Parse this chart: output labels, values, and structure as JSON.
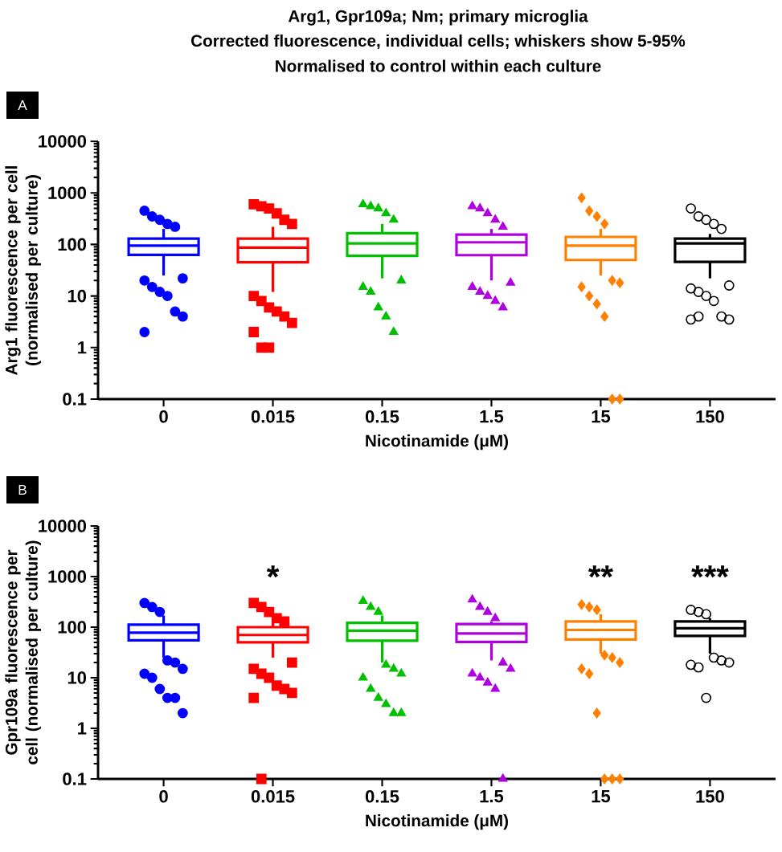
{
  "chart_data": [
    {
      "type": "box",
      "title": "Arg1, Gpr109a; Nm; primary microglia",
      "subtitle": "Corrected fluorescence, individual cells; whiskers show 5-95%",
      "annotations": [
        "Normalised to control within each culture",
        "A"
      ],
      "xlabel": "Nicotinamide (μM)",
      "ylabel": "Arg1 fluorescence per cell (normalised per culture)",
      "categories": [
        "0",
        "0.015",
        "0.15",
        "1.5",
        "15",
        "150"
      ],
      "colors": [
        "#0000ff",
        "#ff0000",
        "#00c000",
        "#b000e0",
        "#ff8000",
        "#000000"
      ],
      "log": true,
      "ylim": [
        0.1,
        10000
      ],
      "yticks": [
        0.1,
        1,
        10,
        100,
        1000,
        10000
      ],
      "boxes": [
        {
          "low": 25,
          "q1": 63,
          "median": 95,
          "q3": 130,
          "high": 200,
          "outliers": [
            450,
            350,
            300,
            250,
            220,
            22,
            20,
            15,
            12,
            10,
            5,
            4,
            2
          ]
        },
        {
          "low": 12,
          "q1": 45,
          "median": 87,
          "q3": 130,
          "high": 220,
          "outliers": [
            600,
            550,
            500,
            400,
            300,
            250,
            10,
            8,
            6,
            5,
            4,
            3,
            2,
            1,
            1
          ]
        },
        {
          "low": 22,
          "q1": 60,
          "median": 105,
          "q3": 165,
          "high": 250,
          "outliers": [
            600,
            550,
            500,
            400,
            300,
            20,
            15,
            12,
            6,
            4,
            2
          ]
        },
        {
          "low": 20,
          "q1": 62,
          "median": 110,
          "q3": 155,
          "high": 200,
          "outliers": [
            550,
            500,
            400,
            300,
            220,
            18,
            15,
            12,
            10,
            8,
            6
          ]
        },
        {
          "low": 25,
          "q1": 50,
          "median": 95,
          "q3": 140,
          "high": 200,
          "outliers": [
            800,
            450,
            350,
            250,
            20,
            18,
            15,
            10,
            7,
            4,
            0.1,
            0.1
          ]
        },
        {
          "low": 22,
          "q1": 46,
          "median": 105,
          "q3": 130,
          "high": 160,
          "outliers": [
            500,
            350,
            300,
            250,
            200,
            16,
            14,
            12,
            10,
            8,
            4,
            3.5,
            3.5,
            4
          ]
        }
      ]
    },
    {
      "type": "box",
      "annotations": [
        "B"
      ],
      "value_labels": [
        null,
        "*",
        null,
        null,
        "**",
        "***"
      ],
      "xlabel": "Nicotinamide (μM)",
      "ylabel": "Gpr109a fluorescence per cell (normalised per culture)",
      "categories": [
        "0",
        "0.015",
        "0.15",
        "1.5",
        "15",
        "150"
      ],
      "colors": [
        "#0000ff",
        "#ff0000",
        "#00c000",
        "#b000e0",
        "#ff8000",
        "#000000"
      ],
      "log": true,
      "ylim": [
        0.1,
        10000
      ],
      "yticks": [
        0.1,
        1,
        10,
        100,
        1000,
        10000
      ],
      "boxes": [
        {
          "low": 25,
          "q1": 55,
          "median": 78,
          "q3": 112,
          "high": 170,
          "outliers": [
            300,
            250,
            200,
            22,
            20,
            15,
            12,
            10,
            6,
            4,
            4,
            2
          ]
        },
        {
          "low": 25,
          "q1": 50,
          "median": 70,
          "q3": 100,
          "high": 120,
          "outliers": [
            300,
            250,
            200,
            150,
            130,
            20,
            15,
            12,
            10,
            7,
            6,
            5,
            4,
            0.1
          ]
        },
        {
          "low": 20,
          "q1": 54,
          "median": 85,
          "q3": 122,
          "high": 170,
          "outliers": [
            330,
            250,
            200,
            18,
            15,
            12,
            10,
            6,
            4,
            3,
            2,
            2
          ]
        },
        {
          "low": 22,
          "q1": 51,
          "median": 75,
          "q3": 115,
          "high": 130,
          "outliers": [
            350,
            250,
            200,
            150,
            20,
            15,
            12,
            10,
            8,
            6,
            0.1
          ]
        },
        {
          "low": 30,
          "q1": 57,
          "median": 88,
          "q3": 130,
          "high": 180,
          "outliers": [
            280,
            250,
            220,
            28,
            25,
            20,
            15,
            12,
            2,
            0.1,
            0.1,
            0.1
          ]
        },
        {
          "low": 30,
          "q1": 67,
          "median": 95,
          "q3": 130,
          "high": 150,
          "outliers": [
            220,
            200,
            180,
            25,
            22,
            20,
            18,
            16,
            4
          ]
        }
      ]
    }
  ]
}
